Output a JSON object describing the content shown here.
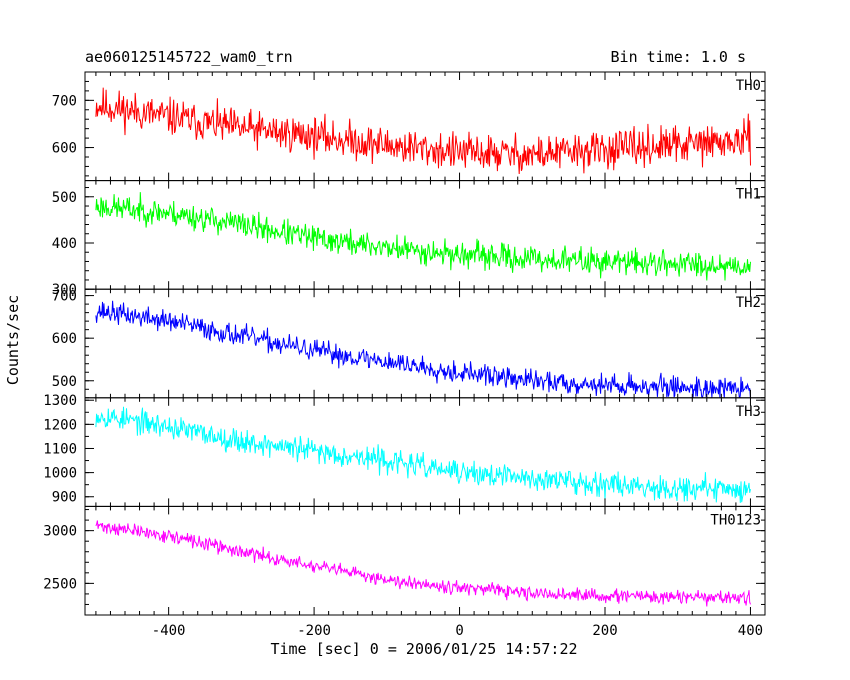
{
  "chart_data": {
    "type": "line",
    "title": "ae060125145722_wam0_trn",
    "subtitle": "Bin time: 1.0 s",
    "xlabel": "Time [sec] 0 = 2006/01/25 14:57:22",
    "ylabel": "Counts/sec",
    "xlim": [
      -515,
      420
    ],
    "xticks": [
      -400,
      -200,
      0,
      200,
      400
    ],
    "x_range": [
      -500,
      400
    ],
    "x_step": 1,
    "series": [
      {
        "name": "TH0",
        "color": "#ff0000",
        "ylim": [
          530,
          760
        ],
        "yticks": [
          600,
          700
        ],
        "noise": 28,
        "seed": 11,
        "trend": [
          [
            -500,
            690
          ],
          [
            -400,
            665
          ],
          [
            -300,
            640
          ],
          [
            -200,
            625
          ],
          [
            -100,
            605
          ],
          [
            0,
            590
          ],
          [
            100,
            585
          ],
          [
            200,
            595
          ],
          [
            300,
            605
          ],
          [
            400,
            615
          ]
        ]
      },
      {
        "name": "TH1",
        "color": "#00ff00",
        "ylim": [
          300,
          535
        ],
        "yticks": [
          300,
          400,
          500
        ],
        "noise": 20,
        "seed": 23,
        "trend": [
          [
            -500,
            480
          ],
          [
            -400,
            465
          ],
          [
            -300,
            440
          ],
          [
            -200,
            410
          ],
          [
            -100,
            390
          ],
          [
            0,
            375
          ],
          [
            100,
            365
          ],
          [
            200,
            360
          ],
          [
            300,
            355
          ],
          [
            400,
            350
          ]
        ]
      },
      {
        "name": "TH2",
        "color": "#0000ff",
        "ylim": [
          460,
          715
        ],
        "yticks": [
          500,
          600,
          700
        ],
        "noise": 18,
        "seed": 37,
        "trend": [
          [
            -500,
            665
          ],
          [
            -400,
            640
          ],
          [
            -300,
            605
          ],
          [
            -200,
            570
          ],
          [
            -100,
            545
          ],
          [
            0,
            520
          ],
          [
            100,
            500
          ],
          [
            200,
            490
          ],
          [
            300,
            485
          ],
          [
            400,
            480
          ]
        ]
      },
      {
        "name": "TH3",
        "color": "#00ffff",
        "ylim": [
          860,
          1310
        ],
        "yticks": [
          900,
          1000,
          1100,
          1200,
          1300
        ],
        "noise": 35,
        "seed": 53,
        "trend": [
          [
            -500,
            1240
          ],
          [
            -400,
            1190
          ],
          [
            -300,
            1130
          ],
          [
            -200,
            1090
          ],
          [
            -100,
            1050
          ],
          [
            0,
            1000
          ],
          [
            100,
            975
          ],
          [
            200,
            955
          ],
          [
            300,
            935
          ],
          [
            400,
            930
          ]
        ]
      },
      {
        "name": "TH0123",
        "color": "#ff00ff",
        "ylim": [
          2200,
          3230
        ],
        "yticks": [
          2500,
          3000
        ],
        "noise": 45,
        "seed": 71,
        "trend": [
          [
            -500,
            3050
          ],
          [
            -400,
            2950
          ],
          [
            -300,
            2800
          ],
          [
            -200,
            2660
          ],
          [
            -100,
            2540
          ],
          [
            0,
            2460
          ],
          [
            100,
            2400
          ],
          [
            200,
            2380
          ],
          [
            300,
            2370
          ],
          [
            400,
            2360
          ]
        ]
      }
    ]
  }
}
